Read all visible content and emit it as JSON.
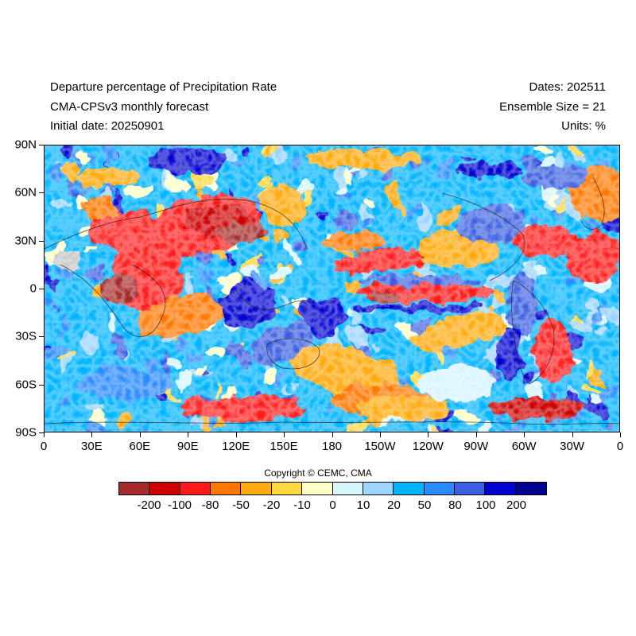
{
  "header": {
    "title": "Departure percentage of Precipitation Rate",
    "model": "CMA-CPSv3 monthly forecast",
    "initial_date": "Initial date: 20250901",
    "dates": "Dates: 202511",
    "ensemble": "Ensemble Size = 21",
    "units": "Units: %"
  },
  "map": {
    "lat_labels": [
      "90N",
      "60N",
      "30N",
      "0",
      "30S",
      "60S",
      "90S"
    ],
    "lon_labels": [
      "0",
      "30E",
      "60E",
      "90E",
      "120E",
      "150E",
      "180",
      "150W",
      "120W",
      "90W",
      "60W",
      "30W",
      "0"
    ]
  },
  "copyright": "Copyright © CEMC, CMA",
  "colorbar": {
    "colors": [
      "#a52a2a",
      "#cd0000",
      "#ff1a1a",
      "#ff7700",
      "#ffaa11",
      "#ffd740",
      "#ffffc8",
      "#d6f5ff",
      "#9cd5ff",
      "#00b4ff",
      "#2a8bff",
      "#3a5fe0",
      "#0000d0",
      "#000090"
    ],
    "labels": [
      "-200",
      "-100",
      "-80",
      "-50",
      "-20",
      "-10",
      "0",
      "10",
      "20",
      "50",
      "80",
      "100",
      "200"
    ]
  }
}
